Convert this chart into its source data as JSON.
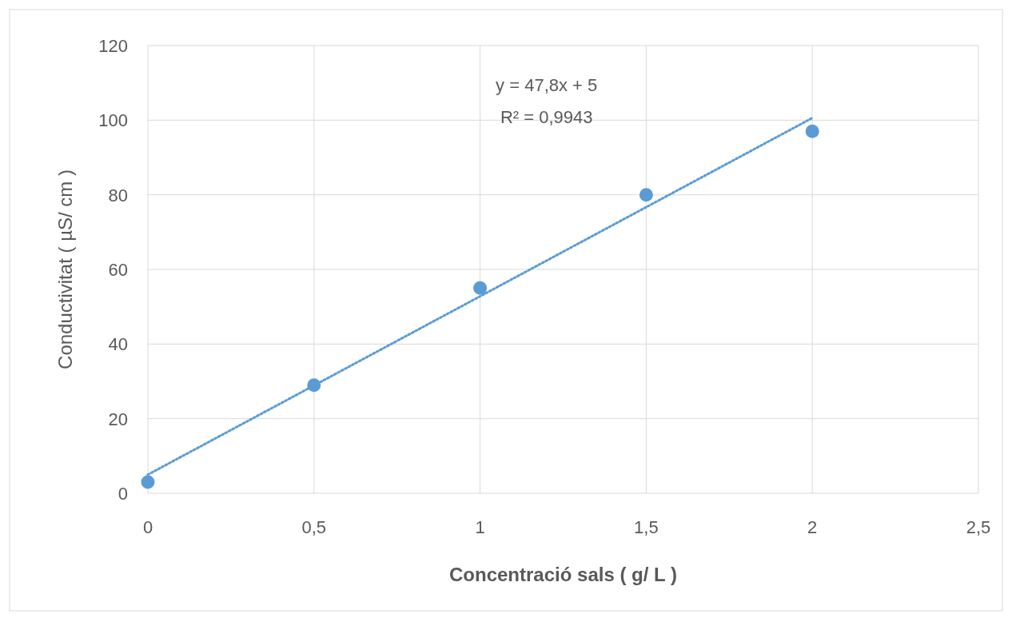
{
  "chart_data": {
    "type": "scatter",
    "xlabel": "Concentració sals ( g/ L )",
    "ylabel": "Conductivitat ( µS/ cm )",
    "xlim": [
      0,
      2.5
    ],
    "xticks": [
      0,
      {
        "value": 0.5,
        "label": "0,5"
      },
      1,
      {
        "value": 1.5,
        "label": "1,5"
      },
      2,
      {
        "value": 2.5,
        "label": "2,5"
      }
    ],
    "ylim": [
      0,
      120
    ],
    "yticks": [
      0,
      20,
      40,
      60,
      80,
      100,
      120
    ],
    "grid": true,
    "marker": "circle",
    "annotations": [
      "y = 47,8x + 5",
      "R² = 0,9943"
    ],
    "series": [
      {
        "color": "#5b9bd5",
        "x": [
          0,
          0.5,
          1,
          1.5,
          2
        ],
        "values": [
          3,
          29,
          55,
          80,
          97
        ]
      },
      {
        "type": "line",
        "color": "#5b9bd5",
        "x": [
          0,
          2
        ],
        "values": [
          5,
          100.6
        ],
        "line_style": "dotted",
        "marker": "none"
      }
    ]
  }
}
